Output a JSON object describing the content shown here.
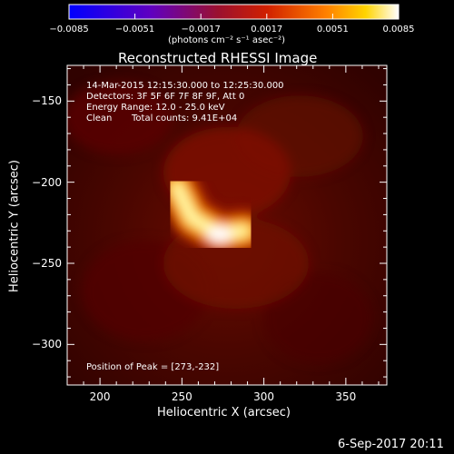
{
  "chart_data": {
    "type": "heatmap",
    "title": "Reconstructed RHESSI Image",
    "xlabel": "Heliocentric X (arcsec)",
    "ylabel": "Heliocentric Y (arcsec)",
    "xlim": [
      180,
      375
    ],
    "ylim": [
      -325,
      -128
    ],
    "x_ticks": [
      200,
      250,
      300,
      350
    ],
    "y_ticks": [
      -150,
      -200,
      -250,
      -300
    ],
    "colormap": "black-red-orange-yellow-white (RHESSI hot)",
    "colorbar": {
      "range": [
        -0.0085,
        0.0085
      ],
      "ticks": [
        "-0.0085",
        "-0.0051",
        "-0.0017",
        "0.0017",
        "0.0051",
        "0.0085"
      ],
      "unit_label": "(photons cm⁻² s⁻¹ asec⁻²)",
      "colors": [
        "#0000ff",
        "#5a00c8",
        "#8c0a3c",
        "#c81400",
        "#ff7800",
        "#ffd200",
        "#ffffff"
      ]
    },
    "annotations": {
      "time_range": "14-Mar-2015 12:15:30.000 to 12:25:30.000",
      "detectors": "Detectors: 3F 5F 6F 7F 8F 9F, Att 0",
      "energy": "Energy Range: 12.0 - 25.0 keV",
      "method": "Clean",
      "total_counts": "Total counts: 9.41E+04",
      "peak": "Position of Peak = [273,-232]"
    },
    "source_shape": {
      "description": "bright curved arc source",
      "peak_x": 273,
      "peak_y": -232,
      "arc_points": [
        [
          247,
          -203
        ],
        [
          256,
          -222
        ],
        [
          273,
          -232
        ],
        [
          288,
          -230
        ]
      ]
    }
  },
  "footer": {
    "date": "6-Sep-2017 20:11"
  }
}
